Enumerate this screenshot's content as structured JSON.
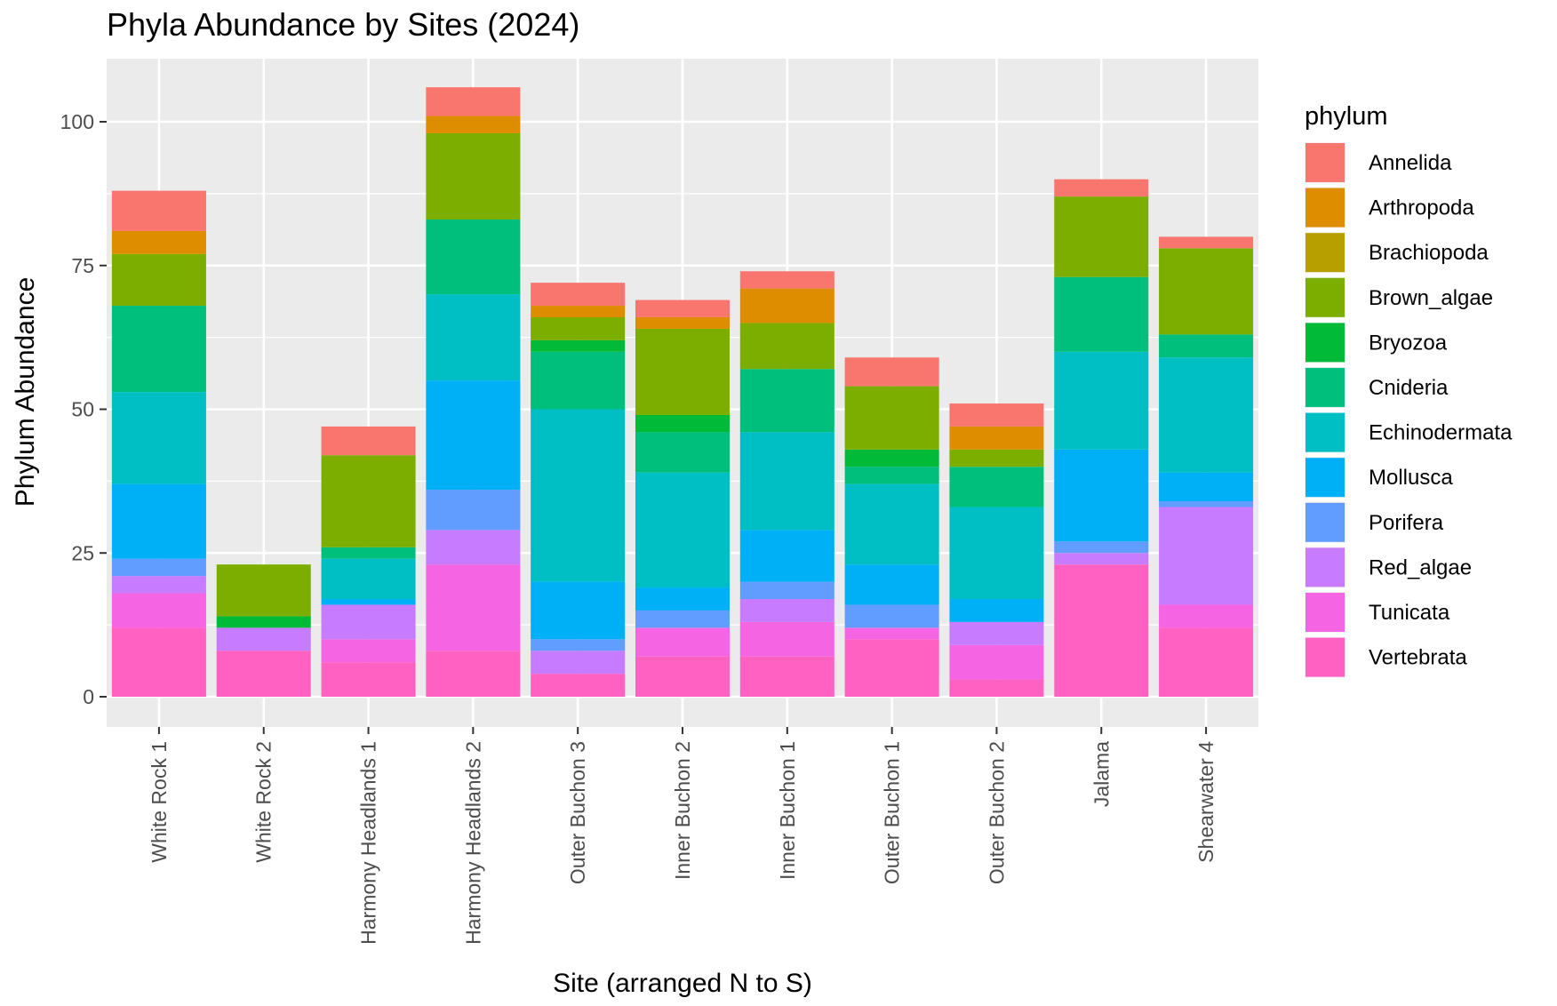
{
  "chart_data": {
    "type": "bar",
    "stacked": true,
    "title": "Phyla Abundance by Sites (2024)",
    "xlabel": "Site (arranged N to S)",
    "ylabel": "Phylum Abundance",
    "ylim": [
      -5,
      110
    ],
    "yticks": [
      0,
      25,
      50,
      75,
      100
    ],
    "grid": true,
    "legend_title": "phylum",
    "legend_position": "right",
    "categories": [
      "White Rock 1",
      "White Rock 2",
      "Harmony Headlands 1",
      "Harmony Headlands 2",
      "Outer Buchon 3",
      "Inner Buchon 2",
      "Inner Buchon 1",
      "Outer Buchon 1",
      "Outer Buchon 2",
      "Jalama",
      "Shearwater 4"
    ],
    "series": [
      {
        "name": "Vertebrata",
        "color": "#FF61C3",
        "values": [
          12,
          8,
          6,
          8,
          4,
          7,
          7,
          10,
          3,
          23,
          12
        ]
      },
      {
        "name": "Tunicata",
        "color": "#F564E3",
        "values": [
          6,
          0,
          4,
          15,
          0,
          5,
          6,
          2,
          6,
          0,
          4
        ]
      },
      {
        "name": "Red_algae",
        "color": "#C77CFF",
        "values": [
          3,
          4,
          6,
          6,
          4,
          0,
          4,
          0,
          4,
          2,
          17
        ]
      },
      {
        "name": "Porifera",
        "color": "#619CFF",
        "values": [
          3,
          0,
          0,
          7,
          2,
          3,
          3,
          4,
          0,
          2,
          1
        ]
      },
      {
        "name": "Mollusca",
        "color": "#00B0F6",
        "values": [
          13,
          0,
          1,
          19,
          10,
          4,
          9,
          7,
          4,
          16,
          5
        ]
      },
      {
        "name": "Echinodermata",
        "color": "#00BFC4",
        "values": [
          16,
          0,
          7,
          15,
          30,
          20,
          17,
          14,
          16,
          17,
          20
        ]
      },
      {
        "name": "Cnideria",
        "color": "#00BF7D",
        "values": [
          15,
          0,
          2,
          13,
          10,
          7,
          11,
          3,
          7,
          13,
          4
        ]
      },
      {
        "name": "Bryozoa",
        "color": "#00BA38",
        "values": [
          0,
          2,
          0,
          0,
          2,
          3,
          0,
          3,
          0,
          0,
          0
        ]
      },
      {
        "name": "Brown_algae",
        "color": "#7CAE00",
        "values": [
          9,
          9,
          16,
          15,
          4,
          15,
          8,
          11,
          3,
          14,
          15
        ]
      },
      {
        "name": "Brachiopoda",
        "color": "#B79F00",
        "values": [
          0,
          0,
          0,
          0,
          0,
          0,
          0,
          0,
          0,
          0,
          0
        ]
      },
      {
        "name": "Arthropoda",
        "color": "#DE8C00",
        "values": [
          4,
          0,
          0,
          3,
          2,
          2,
          6,
          0,
          4,
          0,
          0
        ]
      },
      {
        "name": "Annelida",
        "color": "#F8766D",
        "values": [
          7,
          0,
          5,
          5,
          4,
          3,
          3,
          5,
          4,
          3,
          2
        ]
      }
    ],
    "legend_order": [
      "Annelida",
      "Arthropoda",
      "Brachiopoda",
      "Brown_algae",
      "Bryozoa",
      "Cnideria",
      "Echinodermata",
      "Mollusca",
      "Porifera",
      "Red_algae",
      "Tunicata",
      "Vertebrata"
    ]
  }
}
